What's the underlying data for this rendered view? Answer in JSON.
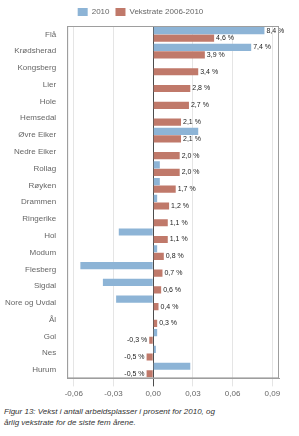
{
  "chart_data": {
    "type": "bar",
    "orientation": "horizontal",
    "categories": [
      "Flå",
      "Krødsherad",
      "Kongsberg",
      "Lier",
      "Hole",
      "Hemsedal",
      "Øvre Eiker",
      "Nedre Eiker",
      "Rollag",
      "Røyken",
      "Drammen",
      "Ringerike",
      "Hol",
      "Modum",
      "Flesberg",
      "Sigdal",
      "Nore og Uvdal",
      "Ål",
      "Gol",
      "Nes",
      "Hurum"
    ],
    "series": [
      {
        "name": "2010",
        "color": "#8db4d6",
        "values": [
          0.084,
          0.074,
          0,
          0,
          0,
          0,
          0.034,
          0,
          0.005,
          0.005,
          0.003,
          0,
          -0.026,
          0.003,
          -0.055,
          -0.038,
          -0.028,
          0,
          0.003,
          0.002,
          0.028
        ],
        "value_labels": [
          "8,4 %",
          "7,4 %",
          null,
          null,
          null,
          null,
          null,
          null,
          null,
          null,
          null,
          null,
          null,
          null,
          null,
          null,
          null,
          null,
          null,
          null,
          null
        ]
      },
      {
        "name": "Vekstrate 2006-2010",
        "color": "#c0796a",
        "values": [
          0.046,
          0.039,
          0.034,
          0.028,
          0.027,
          0.021,
          0.021,
          0.02,
          0.02,
          0.017,
          0.012,
          0.011,
          0.011,
          0.008,
          0.007,
          0.006,
          0.004,
          0.003,
          -0.003,
          -0.005,
          -0.005
        ],
        "value_labels": [
          "4,6 %",
          "3,9 %",
          "3,4 %",
          "2,8 %",
          "2,7 %",
          "2,1 %",
          "2,1 %",
          "2,0 %",
          "2,0 %",
          "1,7 %",
          "1,2 %",
          "1,1 %",
          "1,1 %",
          "0,8 %",
          "0,7 %",
          "0,6 %",
          "0,4 %",
          "0,3 %",
          "-0,3 %",
          "-0,5 %",
          "-0,5 %"
        ]
      }
    ],
    "xlim": [
      -0.065,
      0.095
    ],
    "xticks": [
      {
        "value": -0.06,
        "label": "-0,06"
      },
      {
        "value": -0.03,
        "label": "-0,03"
      },
      {
        "value": 0,
        "label": "0,00"
      },
      {
        "value": 0.03,
        "label": "0,03"
      },
      {
        "value": 0.06,
        "label": "0,06"
      },
      {
        "value": 0.09,
        "label": "0,09"
      }
    ],
    "grid": true,
    "legend": "top",
    "data_labels": true,
    "annotations": [
      "Figur 13: Vekst i antall arbeidsplasser i prosent for 2010, og",
      "årlig vekstrate for de siste fem årene."
    ]
  }
}
